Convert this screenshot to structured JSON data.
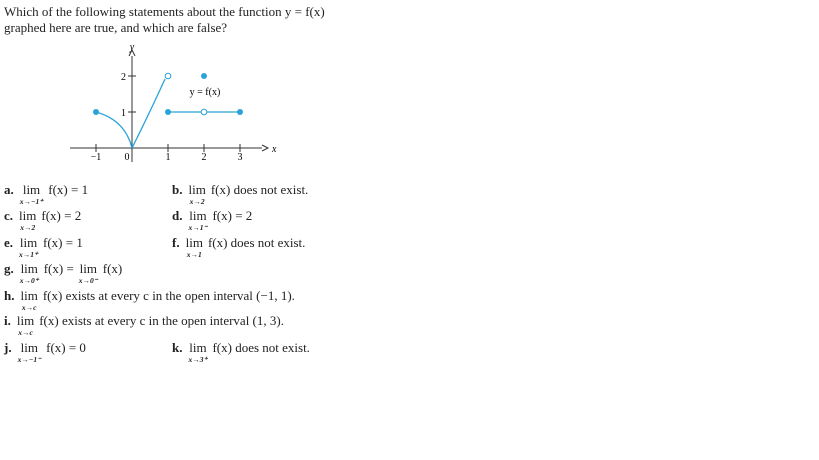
{
  "question": [
    "Which of the following statements about the function y = f(x)",
    "graphed here are true, and which are false?"
  ],
  "graph": {
    "function_label": "y = f(x)",
    "x_axis": "x",
    "y_axis": "y",
    "x_ticks": [
      "−1",
      "0",
      "1",
      "2",
      "3"
    ],
    "y_ticks": [
      "1",
      "2"
    ]
  },
  "items": [
    {
      "letter": "a.",
      "parts": [
        {
          "lim": "lim",
          "sub": "x→−1⁺"
        },
        {
          "text": "f(x) = 1"
        }
      ]
    },
    {
      "letter": "b.",
      "parts": [
        {
          "lim": "lim",
          "sub": "x→2"
        },
        {
          "text": "f(x) does not exist."
        }
      ]
    },
    {
      "letter": "c.",
      "parts": [
        {
          "lim": "lim",
          "sub": "x→2"
        },
        {
          "text": "f(x) = 2"
        }
      ]
    },
    {
      "letter": "d.",
      "parts": [
        {
          "lim": "lim",
          "sub": "x→1⁻"
        },
        {
          "text": "f(x) = 2"
        }
      ]
    },
    {
      "letter": "e.",
      "parts": [
        {
          "lim": "lim",
          "sub": "x→1⁺"
        },
        {
          "text": "f(x) = 1"
        }
      ]
    },
    {
      "letter": "f.",
      "parts": [
        {
          "lim": "lim",
          "sub": "x→1"
        },
        {
          "text": "f(x) does not exist."
        }
      ]
    },
    {
      "letter": "g.",
      "parts": [
        {
          "lim": "lim",
          "sub": "x→0⁺"
        },
        {
          "text": "f(x) ="
        },
        {
          "lim": "lim",
          "sub": "x→0⁻"
        },
        {
          "text": "f(x)"
        }
      ]
    },
    {
      "letter": "h.",
      "parts": [
        {
          "lim": "lim",
          "sub": "x→c"
        },
        {
          "text": "f(x) exists at every c in the open interval (−1, 1)."
        }
      ]
    },
    {
      "letter": "i.",
      "parts": [
        {
          "lim": "lim",
          "sub": "x→c"
        },
        {
          "text": "f(x) exists at every c in the open interval (1, 3)."
        }
      ]
    },
    {
      "letter": "j.",
      "parts": [
        {
          "lim": "lim",
          "sub": "x→−1⁻"
        },
        {
          "text": "f(x) = 0"
        }
      ]
    },
    {
      "letter": "k.",
      "parts": [
        {
          "lim": "lim",
          "sub": "x→3⁺"
        },
        {
          "text": "f(x) does not exist."
        }
      ]
    }
  ]
}
